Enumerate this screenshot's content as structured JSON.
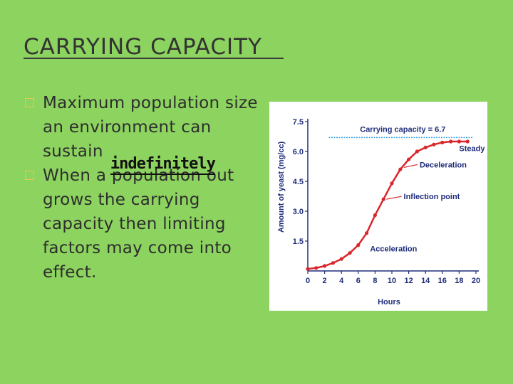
{
  "slide": {
    "title": "CARRYING CAPACITY",
    "bullets": [
      {
        "text": "Maximum population size an environment can sustain"
      },
      {
        "before": "When a ",
        "struck": "population",
        "handwritten": "indefinitely",
        "after": " out grows the carrying capacity then limiting factors may come into effect."
      }
    ]
  },
  "chart_data": {
    "type": "line",
    "title": "",
    "xlabel": "Hours",
    "ylabel": "Amount of yeast (mg/cc)",
    "xlim": [
      0,
      20
    ],
    "ylim": [
      0,
      7.5
    ],
    "x_ticks": [
      "0",
      "2",
      "4",
      "6",
      "8",
      "10",
      "12",
      "14",
      "16",
      "18",
      "20"
    ],
    "y_ticks": [
      "1.5",
      "3.0",
      "4.5",
      "6.0",
      "7.5"
    ],
    "series": [
      {
        "x": [
          0,
          1,
          2,
          3,
          4,
          5,
          6,
          7,
          8,
          9,
          10,
          11,
          12,
          13,
          14,
          15,
          16,
          17,
          18,
          19
        ],
        "values": [
          0.1,
          0.15,
          0.25,
          0.4,
          0.6,
          0.9,
          1.3,
          1.9,
          2.8,
          3.6,
          4.4,
          5.1,
          5.6,
          6.0,
          6.2,
          6.35,
          6.45,
          6.5,
          6.5,
          6.5
        ]
      }
    ],
    "carrying_capacity": {
      "value": 6.7,
      "label": "Carrying capacity = 6.7"
    },
    "annotations": [
      {
        "label": "Steady State",
        "x": 16,
        "y": 6.3
      },
      {
        "label": "Deceleration",
        "x": 11.5,
        "y": 5.2
      },
      {
        "label": "Inflection point",
        "x": 9,
        "y": 3.6
      },
      {
        "label": "Acceleration",
        "x": 6,
        "y": 1.2
      }
    ],
    "colors": {
      "curve": "#d9262b",
      "capacity_line": "#3aa0e0",
      "text": "#1f2d7a",
      "axis": "#1f2d7a"
    },
    "grid": false,
    "legend": "none"
  }
}
